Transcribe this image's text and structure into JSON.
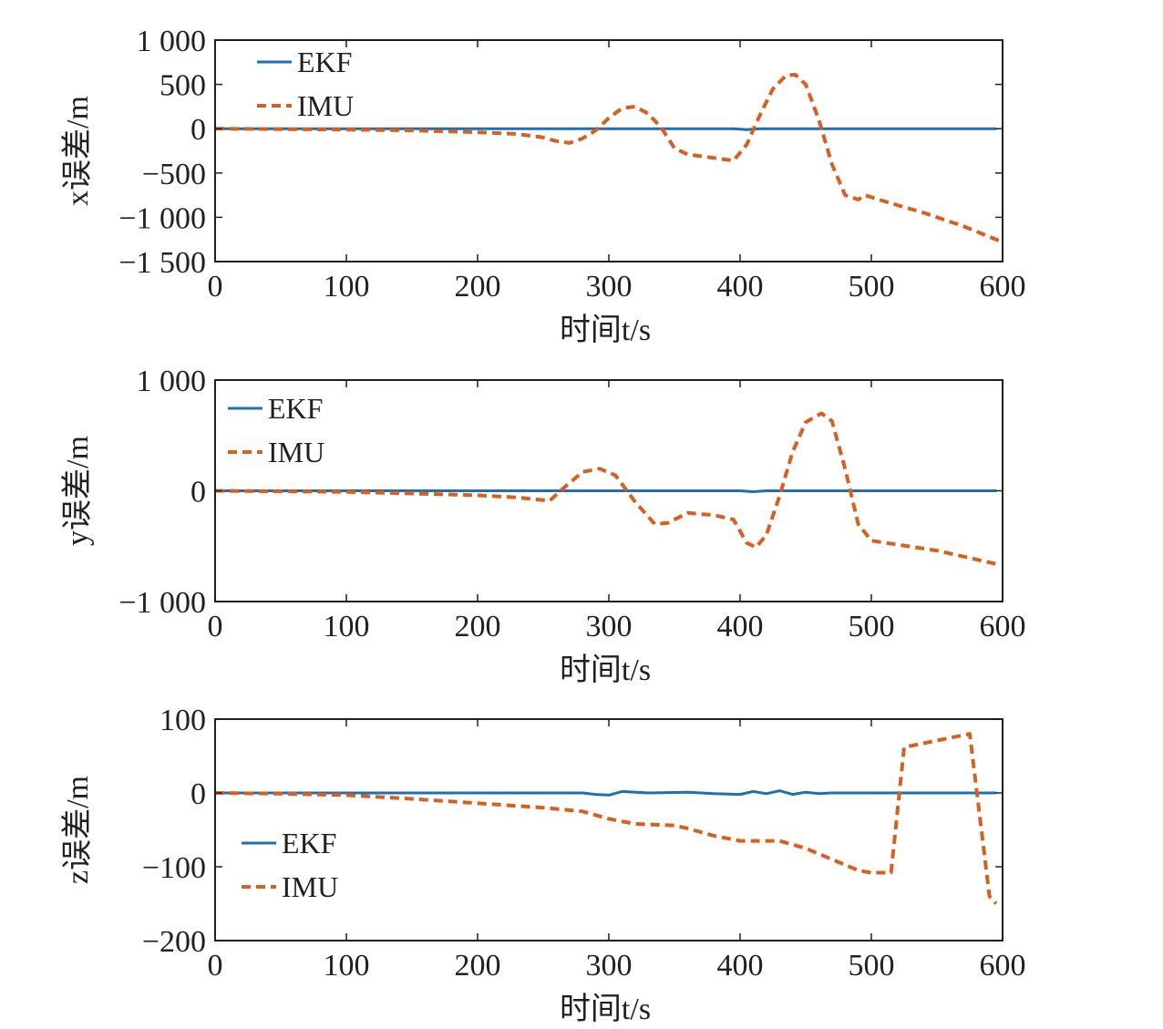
{
  "chart_data": [
    {
      "type": "line",
      "xlabel": "时间t/s",
      "ylabel": "x误差/m",
      "xlim": [
        0,
        600
      ],
      "ylim": [
        -1500,
        1000
      ],
      "xticks": [
        "0",
        "100",
        "200",
        "300",
        "400",
        "500",
        "600"
      ],
      "yticks": [
        {
          "value": 1000,
          "label": "1 000"
        },
        {
          "value": 500,
          "label": "500"
        },
        {
          "value": 0,
          "label": "0"
        },
        {
          "value": -500,
          "label": "−500"
        },
        {
          "value": -1000,
          "label": "−1 000"
        },
        {
          "value": -1500,
          "label": "−1 500"
        }
      ],
      "legend_position": "top-left",
      "series": [
        {
          "name": "EKF",
          "style": "solid",
          "color": "#1f6fb2",
          "x": [
            0,
            100,
            200,
            300,
            395,
            405,
            415,
            595
          ],
          "y": [
            0,
            0,
            0,
            0,
            0,
            -10,
            0,
            0
          ]
        },
        {
          "name": "IMU",
          "style": "dashed",
          "color": "#d95f1e",
          "x": [
            0,
            50,
            100,
            150,
            200,
            230,
            250,
            260,
            270,
            280,
            290,
            300,
            310,
            320,
            330,
            340,
            350,
            360,
            380,
            395,
            405,
            415,
            425,
            435,
            442,
            450,
            460,
            470,
            480,
            490,
            495,
            510,
            540,
            570,
            600
          ],
          "y": [
            0,
            -5,
            -10,
            -20,
            -40,
            -60,
            -100,
            -140,
            -160,
            -110,
            -20,
            120,
            230,
            250,
            170,
            10,
            -220,
            -290,
            -330,
            -360,
            -180,
            150,
            450,
            600,
            610,
            500,
            100,
            -400,
            -750,
            -800,
            -750,
            -820,
            -950,
            -1100,
            -1280
          ]
        }
      ]
    },
    {
      "type": "line",
      "xlabel": "时间t/s",
      "ylabel": "y误差/m",
      "xlim": [
        0,
        600
      ],
      "ylim": [
        -1000,
        1000
      ],
      "xticks": [
        "0",
        "100",
        "200",
        "300",
        "400",
        "500",
        "600"
      ],
      "yticks": [
        {
          "value": 1000,
          "label": "1 000"
        },
        {
          "value": 0,
          "label": "0"
        },
        {
          "value": -1000,
          "label": "−1 000"
        }
      ],
      "legend_position": "top-left",
      "series": [
        {
          "name": "EKF",
          "style": "solid",
          "color": "#1f6fb2",
          "x": [
            0,
            100,
            200,
            300,
            400,
            410,
            420,
            595
          ],
          "y": [
            0,
            0,
            0,
            0,
            0,
            -8,
            0,
            0
          ]
        },
        {
          "name": "IMU",
          "style": "dashed",
          "color": "#d95f1e",
          "x": [
            0,
            50,
            100,
            150,
            200,
            230,
            255,
            265,
            280,
            293,
            305,
            320,
            335,
            345,
            360,
            380,
            395,
            405,
            412,
            420,
            430,
            440,
            450,
            462,
            470,
            480,
            490,
            500,
            550,
            595
          ],
          "y": [
            0,
            -5,
            -10,
            -25,
            -40,
            -60,
            -90,
            20,
            170,
            200,
            140,
            -100,
            -300,
            -290,
            -200,
            -220,
            -260,
            -470,
            -510,
            -400,
            -50,
            350,
            620,
            700,
            630,
            200,
            -300,
            -450,
            -540,
            -660
          ]
        }
      ]
    },
    {
      "type": "line",
      "xlabel": "时间t/s",
      "ylabel": "z误差/m",
      "xlim": [
        0,
        600
      ],
      "ylim": [
        -200,
        100
      ],
      "xticks": [
        "0",
        "100",
        "200",
        "300",
        "400",
        "500",
        "600"
      ],
      "yticks": [
        {
          "value": 100,
          "label": "100"
        },
        {
          "value": 0,
          "label": "0"
        },
        {
          "value": -100,
          "label": "−100"
        },
        {
          "value": -200,
          "label": "−200"
        }
      ],
      "legend_position": "lower-left",
      "series": [
        {
          "name": "EKF",
          "style": "solid",
          "color": "#1f6fb2",
          "x": [
            0,
            100,
            200,
            280,
            290,
            300,
            310,
            330,
            360,
            380,
            400,
            410,
            420,
            430,
            440,
            450,
            460,
            470,
            595
          ],
          "y": [
            0,
            0,
            0,
            0,
            -2,
            -3,
            2,
            0,
            1,
            -1,
            -2,
            2,
            -1,
            3,
            -2,
            1,
            -1,
            0,
            0
          ]
        },
        {
          "name": "IMU",
          "style": "dashed",
          "color": "#d95f1e",
          "x": [
            0,
            50,
            100,
            150,
            200,
            250,
            280,
            300,
            320,
            350,
            360,
            380,
            400,
            430,
            450,
            470,
            490,
            500,
            515,
            525,
            575,
            590,
            595
          ],
          "y": [
            0,
            -1,
            -3,
            -8,
            -14,
            -20,
            -25,
            -35,
            -42,
            -44,
            -48,
            -58,
            -65,
            -65,
            -75,
            -90,
            -105,
            -108,
            -108,
            62,
            80,
            -140,
            -150
          ]
        }
      ]
    }
  ]
}
